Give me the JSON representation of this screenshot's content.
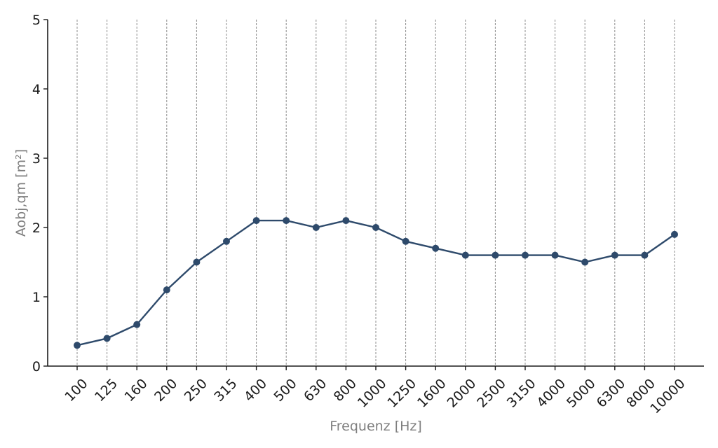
{
  "chart_data": {
    "type": "line",
    "title": "",
    "xlabel": "Frequenz [Hz]",
    "ylabel": "Aobj,qm [m²]",
    "categories": [
      "100",
      "125",
      "160",
      "200",
      "250",
      "315",
      "400",
      "500",
      "630",
      "800",
      "1000",
      "1250",
      "1600",
      "2000",
      "2500",
      "3150",
      "4000",
      "5000",
      "6300",
      "8000",
      "10000"
    ],
    "series": [
      {
        "values": [
          0.3,
          0.4,
          0.6,
          1.1,
          1.5,
          1.8,
          2.1,
          2.1,
          2.0,
          2.1,
          2.0,
          1.8,
          1.7,
          1.6,
          1.6,
          1.6,
          1.6,
          1.5,
          1.6,
          1.6,
          1.9
        ]
      }
    ],
    "ylim": [
      0,
      5
    ],
    "yticks": [
      0,
      1,
      2,
      3,
      4,
      5
    ],
    "grid": "vertical-dashed",
    "colors": {
      "line": "#2e4a6b",
      "grid": "#8c8c8c",
      "axis": "#1a1a1a"
    }
  }
}
